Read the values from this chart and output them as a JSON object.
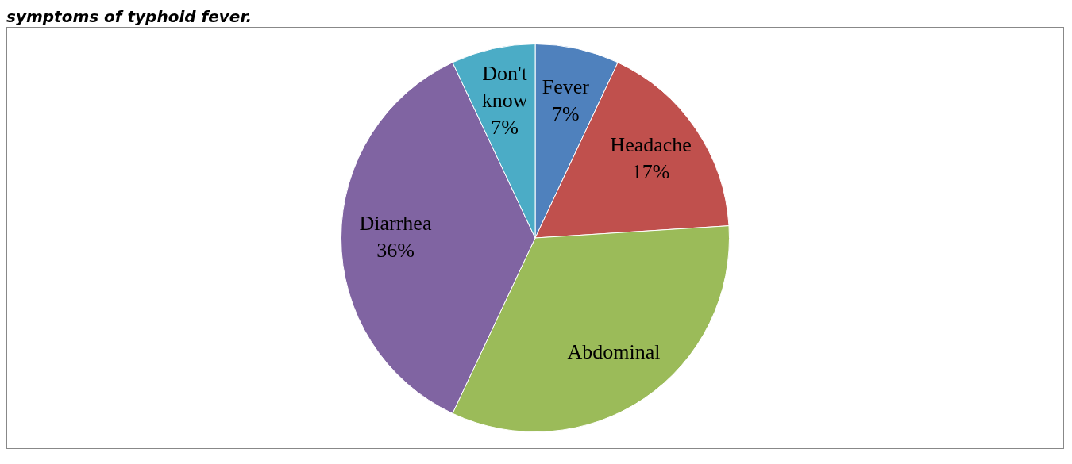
{
  "chart_data": {
    "type": "pie",
    "title": "symptoms of typhoid fever.",
    "categories": [
      "Fever",
      "Headache",
      "Abdominal",
      "Diarrhea",
      "Don't know"
    ],
    "values": [
      7,
      17,
      33,
      36,
      7
    ],
    "colors": [
      "#4f81bd",
      "#c0504d",
      "#9bbb59",
      "#8064a2",
      "#4bacc6"
    ],
    "value_labels": [
      "7%",
      "17%",
      null,
      "36%",
      "7%"
    ],
    "legend": false
  }
}
